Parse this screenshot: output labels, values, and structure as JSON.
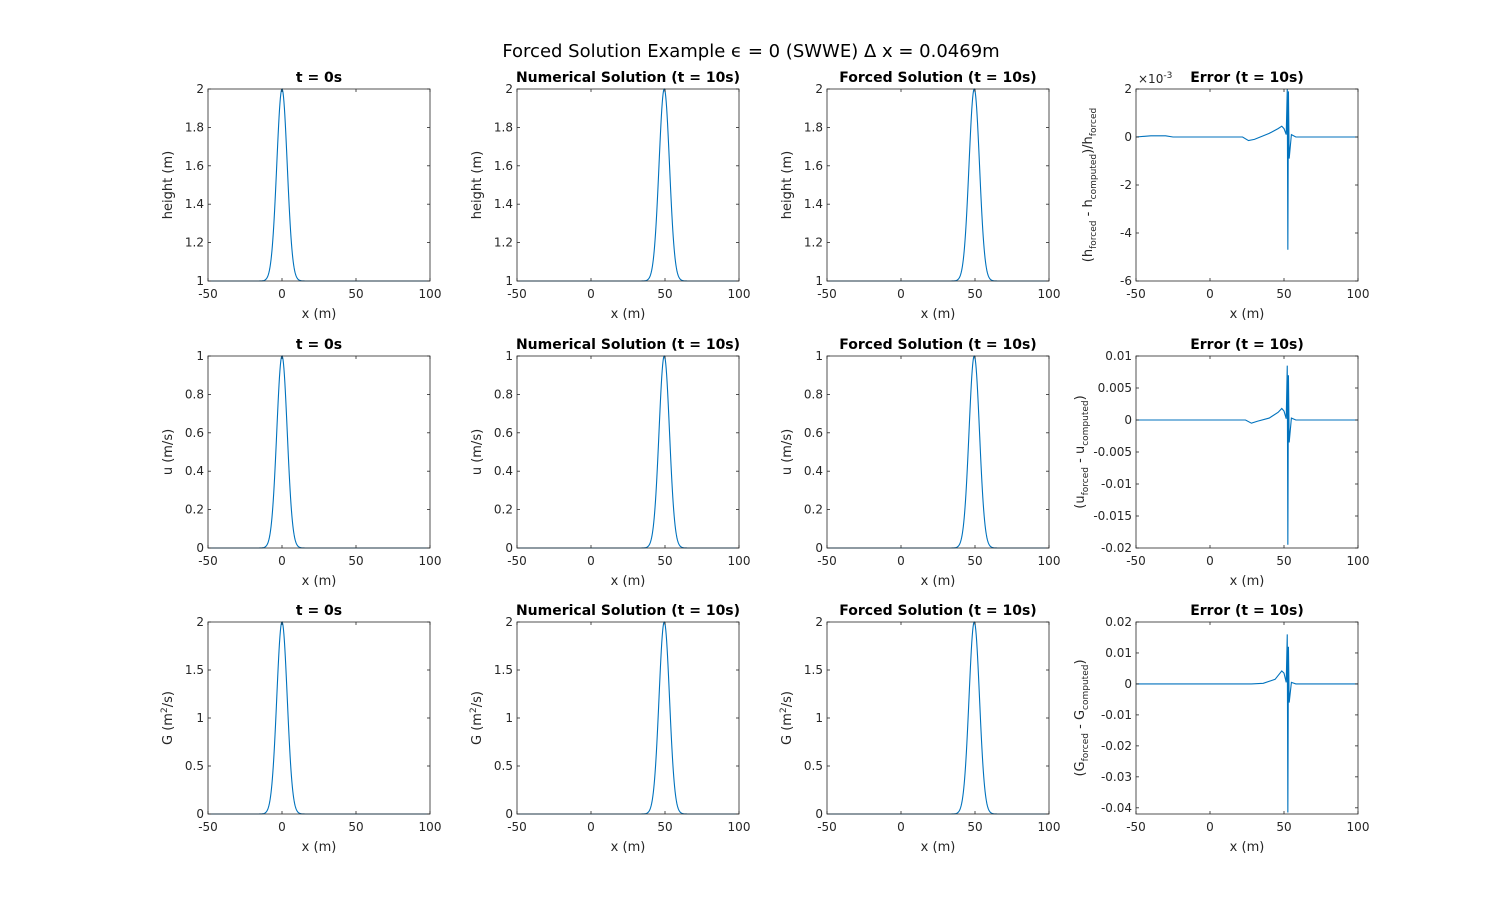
{
  "figure": {
    "title": "Forced Solution Example ϵ = 0 (SWWE) Δ x = 0.0469m",
    "line_color": "#0072BD",
    "axis_color": "#262626"
  },
  "chart_data": [
    {
      "id": "h_t0",
      "type": "line",
      "title": "t = 0s",
      "xlabel": "x (m)",
      "ylabel": "height (m)",
      "xlim": [
        -50,
        100
      ],
      "ylim": [
        1,
        2
      ],
      "xticks": [
        "-50",
        "0",
        "50",
        "100"
      ],
      "yticks": [
        "1",
        "1.2",
        "1.4",
        "1.6",
        "1.8",
        "2"
      ],
      "series": [
        {
          "shape": "gaussian",
          "center": 0,
          "width": 5,
          "base": 1,
          "peak": 2
        }
      ]
    },
    {
      "id": "h_num",
      "type": "line",
      "title": "Numerical Solution (t = 10s)",
      "xlabel": "x (m)",
      "ylabel": "height (m)",
      "xlim": [
        -50,
        100
      ],
      "ylim": [
        1,
        2
      ],
      "xticks": [
        "-50",
        "0",
        "50",
        "100"
      ],
      "yticks": [
        "1",
        "1.2",
        "1.4",
        "1.6",
        "1.8",
        "2"
      ],
      "series": [
        {
          "shape": "gaussian",
          "center": 49.5,
          "width": 5,
          "base": 1,
          "peak": 2
        }
      ]
    },
    {
      "id": "h_forced",
      "type": "line",
      "title": "Forced Solution (t = 10s)",
      "xlabel": "x (m)",
      "ylabel": "height (m)",
      "xlim": [
        -50,
        100
      ],
      "ylim": [
        1,
        2
      ],
      "xticks": [
        "-50",
        "0",
        "50",
        "100"
      ],
      "yticks": [
        "1",
        "1.2",
        "1.4",
        "1.6",
        "1.8",
        "2"
      ],
      "series": [
        {
          "shape": "gaussian",
          "center": 49.5,
          "width": 5,
          "base": 1,
          "peak": 2
        }
      ]
    },
    {
      "id": "h_err",
      "type": "line",
      "title": "Error (t = 10s)",
      "xlabel": "x (m)",
      "ylabel_parts": {
        "open": "(h",
        "sub1": "forced",
        "mid": " - h",
        "sub2": "computed",
        "close": ")/h",
        "sub3": "forced"
      },
      "exponent_base": "×10",
      "exponent_power": "-3",
      "xlim": [
        -50,
        100
      ],
      "ylim": [
        -6,
        2
      ],
      "xticks": [
        "-50",
        "0",
        "50",
        "100"
      ],
      "yticks": [
        "-6",
        "-4",
        "-2",
        "0",
        "2"
      ],
      "series": [
        {
          "shape": "error",
          "points": [
            [
              -50,
              0
            ],
            [
              -40,
              0.05
            ],
            [
              -30,
              0.05
            ],
            [
              -25,
              0
            ],
            [
              22,
              0
            ],
            [
              26,
              -0.15
            ],
            [
              30,
              -0.1
            ],
            [
              40,
              0.15
            ],
            [
              46,
              0.35
            ],
            [
              48.5,
              0.45
            ],
            [
              50,
              0.35
            ],
            [
              51.5,
              0.1
            ],
            [
              52.2,
              2.0
            ],
            [
              52.6,
              -4.7
            ],
            [
              53.0,
              1.9
            ],
            [
              53.5,
              -0.9
            ],
            [
              55,
              0.1
            ],
            [
              58,
              0
            ],
            [
              100,
              0
            ]
          ]
        }
      ]
    },
    {
      "id": "u_t0",
      "type": "line",
      "title": "t = 0s",
      "xlabel": "x (m)",
      "ylabel": "u (m/s)",
      "xlim": [
        -50,
        100
      ],
      "ylim": [
        0,
        1
      ],
      "xticks": [
        "-50",
        "0",
        "50",
        "100"
      ],
      "yticks": [
        "0",
        "0.2",
        "0.4",
        "0.6",
        "0.8",
        "1"
      ],
      "series": [
        {
          "shape": "gaussian",
          "center": 0,
          "width": 5,
          "base": 0,
          "peak": 1
        }
      ]
    },
    {
      "id": "u_num",
      "type": "line",
      "title": "Numerical Solution (t = 10s)",
      "xlabel": "x (m)",
      "ylabel": "u (m/s)",
      "xlim": [
        -50,
        100
      ],
      "ylim": [
        0,
        1
      ],
      "xticks": [
        "-50",
        "0",
        "50",
        "100"
      ],
      "yticks": [
        "0",
        "0.2",
        "0.4",
        "0.6",
        "0.8",
        "1"
      ],
      "series": [
        {
          "shape": "gaussian",
          "center": 49.5,
          "width": 5,
          "base": 0,
          "peak": 1
        }
      ]
    },
    {
      "id": "u_forced",
      "type": "line",
      "title": "Forced Solution (t = 10s)",
      "xlabel": "x (m)",
      "ylabel": "u (m/s)",
      "xlim": [
        -50,
        100
      ],
      "ylim": [
        0,
        1
      ],
      "xticks": [
        "-50",
        "0",
        "50",
        "100"
      ],
      "yticks": [
        "0",
        "0.2",
        "0.4",
        "0.6",
        "0.8",
        "1"
      ],
      "series": [
        {
          "shape": "gaussian",
          "center": 49.5,
          "width": 5,
          "base": 0,
          "peak": 1
        }
      ]
    },
    {
      "id": "u_err",
      "type": "line",
      "title": "Error (t = 10s)",
      "xlabel": "x (m)",
      "ylabel_parts": {
        "open": "(u",
        "sub1": "forced",
        "mid": " - u",
        "sub2": "computed",
        "close": ")",
        "sub3": ""
      },
      "xlim": [
        -50,
        100
      ],
      "ylim": [
        -0.02,
        0.01
      ],
      "xticks": [
        "-50",
        "0",
        "50",
        "100"
      ],
      "yticks": [
        "-0.02",
        "-0.015",
        "-0.01",
        "-0.005",
        "0",
        "0.005",
        "0.01"
      ],
      "series": [
        {
          "shape": "error",
          "points": [
            [
              -50,
              0
            ],
            [
              -30,
              0
            ],
            [
              24,
              0
            ],
            [
              28,
              -0.0005
            ],
            [
              32,
              -0.0002
            ],
            [
              40,
              0.0003
            ],
            [
              46,
              0.0012
            ],
            [
              48.5,
              0.0018
            ],
            [
              50,
              0.0014
            ],
            [
              51.5,
              0.0002
            ],
            [
              52.2,
              0.0085
            ],
            [
              52.6,
              -0.0195
            ],
            [
              53.0,
              0.007
            ],
            [
              53.5,
              -0.0035
            ],
            [
              55,
              0.0003
            ],
            [
              58,
              0
            ],
            [
              100,
              0
            ]
          ]
        }
      ]
    },
    {
      "id": "G_t0",
      "type": "line",
      "title": "t = 0s",
      "xlabel": "x (m)",
      "ylabel_parts": {
        "open": "G (m",
        "sup": "2",
        "close": "/s)"
      },
      "xlim": [
        -50,
        100
      ],
      "ylim": [
        0,
        2
      ],
      "xticks": [
        "-50",
        "0",
        "50",
        "100"
      ],
      "yticks": [
        "0",
        "0.5",
        "1",
        "1.5",
        "2"
      ],
      "series": [
        {
          "shape": "gaussian",
          "center": 0,
          "width": 5,
          "base": 0,
          "peak": 2
        }
      ]
    },
    {
      "id": "G_num",
      "type": "line",
      "title": "Numerical Solution (t = 10s)",
      "xlabel": "x (m)",
      "ylabel_parts": {
        "open": "G (m",
        "sup": "2",
        "close": "/s)"
      },
      "xlim": [
        -50,
        100
      ],
      "ylim": [
        0,
        2
      ],
      "xticks": [
        "-50",
        "0",
        "50",
        "100"
      ],
      "yticks": [
        "0",
        "0.5",
        "1",
        "1.5",
        "2"
      ],
      "series": [
        {
          "shape": "gaussian",
          "center": 49.5,
          "width": 5,
          "base": 0,
          "peak": 2
        }
      ]
    },
    {
      "id": "G_forced",
      "type": "line",
      "title": "Forced Solution (t = 10s)",
      "xlabel": "x (m)",
      "ylabel_parts": {
        "open": "G (m",
        "sup": "2",
        "close": "/s)"
      },
      "xlim": [
        -50,
        100
      ],
      "ylim": [
        0,
        2
      ],
      "xticks": [
        "-50",
        "0",
        "50",
        "100"
      ],
      "yticks": [
        "0",
        "0.5",
        "1",
        "1.5",
        "2"
      ],
      "series": [
        {
          "shape": "gaussian",
          "center": 49.5,
          "width": 5,
          "base": 0,
          "peak": 2
        }
      ]
    },
    {
      "id": "G_err",
      "type": "line",
      "title": "Error (t = 10s)",
      "xlabel": "x (m)",
      "ylabel_parts": {
        "open": "(G",
        "sub1": "forced",
        "mid": " - G",
        "sub2": "computed",
        "close": ")",
        "sub3": ""
      },
      "xlim": [
        -50,
        100
      ],
      "ylim": [
        -0.042,
        0.02
      ],
      "xticks": [
        "-50",
        "0",
        "50",
        "100"
      ],
      "yticks": [
        "-0.04",
        "-0.03",
        "-0.02",
        "-0.01",
        "0",
        "0.01",
        "0.02"
      ],
      "series": [
        {
          "shape": "error",
          "points": [
            [
              -50,
              0
            ],
            [
              -30,
              0
            ],
            [
              28,
              0
            ],
            [
              36,
              0.0002
            ],
            [
              44,
              0.0015
            ],
            [
              48.5,
              0.0042
            ],
            [
              50,
              0.0035
            ],
            [
              51.5,
              0.0005
            ],
            [
              52.2,
              0.016
            ],
            [
              52.6,
              -0.0415
            ],
            [
              53.0,
              0.012
            ],
            [
              53.5,
              -0.006
            ],
            [
              55,
              0.0005
            ],
            [
              58,
              0
            ],
            [
              100,
              0
            ]
          ]
        }
      ]
    }
  ]
}
